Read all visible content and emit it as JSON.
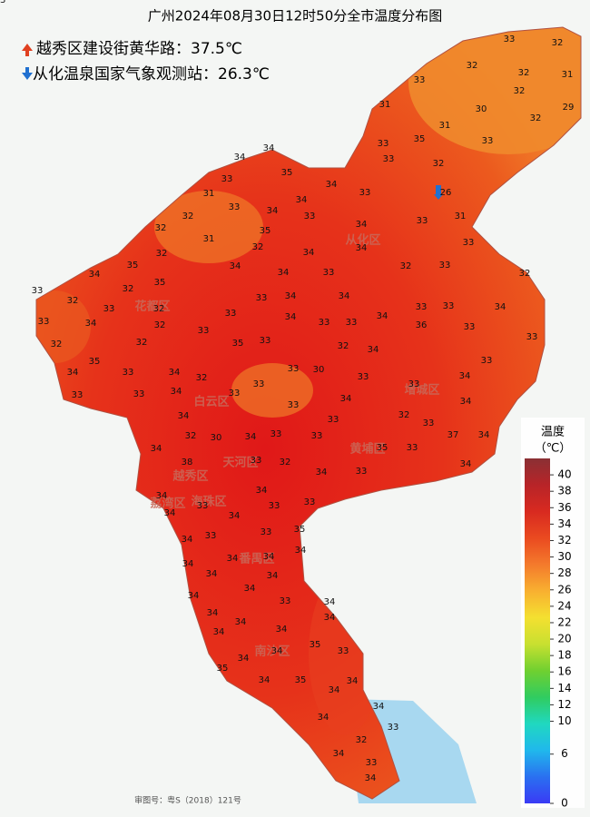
{
  "title": "广州2024年08月30日12时50分全市温度分布图",
  "annotations": [
    "越秀区建设街黄华路：37.5℃",
    "从化温泉国家气象观测站：26.3℃"
  ],
  "districts": [
    "从化区",
    "花都区",
    "白云区",
    "增城区",
    "黄埔区",
    "天河区",
    "越秀区",
    "荔湾区",
    "海珠区",
    "番禺区",
    "南沙区"
  ],
  "footer": "审图号：粤S（2018）121号",
  "legend": {
    "title": "温度",
    "unit": "（℃）",
    "ticks": [
      40,
      38,
      36,
      34,
      32,
      30,
      28,
      26,
      24,
      22,
      20,
      18,
      16,
      14,
      12,
      10,
      6,
      0
    ],
    "lim": [
      0,
      42
    ],
    "colors": [
      "#3a3af5",
      "#2a70f0",
      "#20b8ec",
      "#20d8c0",
      "#30cc60",
      "#70d030",
      "#c8e030",
      "#f4e030",
      "#f8b030",
      "#f47a2c",
      "#ea4a20",
      "#d82a20",
      "#b82428",
      "#8a3034"
    ]
  },
  "stations": [
    33,
    32,
    32,
    32,
    31,
    33,
    32,
    31,
    30,
    29,
    31,
    32,
    33,
    35,
    33,
    34,
    34,
    33,
    32,
    35,
    33,
    34,
    33,
    26,
    31,
    34,
    33,
    34,
    33,
    31,
    32,
    33,
    35,
    34,
    31,
    32,
    33,
    32,
    34,
    34,
    32,
    32,
    33,
    32,
    34,
    33,
    34,
    35,
    34,
    33,
    32,
    33,
    35,
    33,
    34,
    34,
    32,
    32,
    33,
    33,
    34,
    33,
    34,
    32,
    33,
    34,
    33,
    33,
    34,
    36,
    33,
    33,
    32,
    33,
    35,
    33,
    32,
    32,
    34,
    35,
    34,
    33,
    34,
    32,
    33,
    30,
    33,
    33,
    34,
    33,
    33,
    33,
    34,
    33,
    33,
    34,
    33,
    34,
    34,
    33,
    32,
    33,
    32,
    30,
    34,
    33,
    33,
    37,
    34,
    34,
    35,
    33,
    38,
    33,
    32,
    34,
    33,
    34,
    34,
    34,
    33,
    34,
    33,
    34,
    33,
    35,
    33,
    34,
    33,
    34,
    34,
    34,
    34,
    34,
    34,
    34,
    34,
    33,
    34,
    34,
    34,
    34,
    34,
    34,
    35,
    34,
    33,
    34,
    35,
    34,
    35,
    34,
    34,
    34,
    34,
    33,
    32,
    34,
    33,
    34,
    33
  ]
}
